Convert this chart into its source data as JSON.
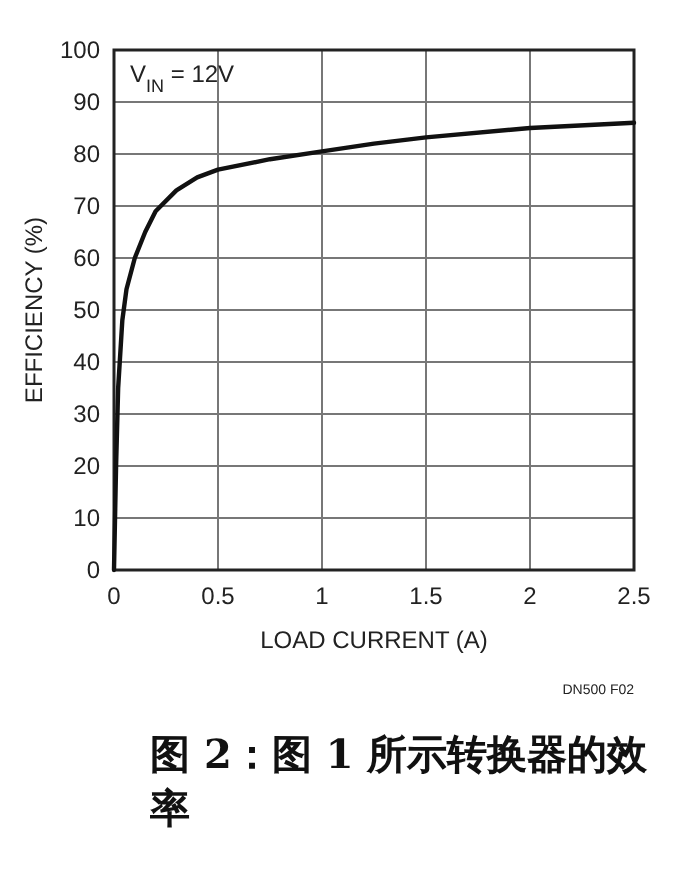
{
  "chart_data": {
    "type": "line",
    "title": "图 2：图 1 所示转换器的效率",
    "xlabel": "LOAD CURRENT (A)",
    "ylabel": "EFFICIENCY (%)",
    "annotations": [
      "V$_{IN}$ = 12V",
      "DN500 F02"
    ],
    "x": [
      0,
      0.01,
      0.02,
      0.04,
      0.06,
      0.1,
      0.15,
      0.2,
      0.3,
      0.4,
      0.5,
      0.75,
      1,
      1.25,
      1.5,
      2,
      2.5
    ],
    "series": [
      {
        "color": "#111111",
        "values": [
          0,
          20,
          35,
          48,
          54,
          60,
          65,
          69,
          73,
          75.5,
          77,
          79,
          80.5,
          82,
          83.2,
          85,
          86
        ]
      }
    ],
    "xlim": [
      0,
      2.5
    ],
    "ylim": [
      0,
      100
    ],
    "xticks": [
      0,
      0.5,
      1,
      1.5,
      2,
      2.5
    ],
    "yticks": [
      0,
      10,
      20,
      30,
      40,
      50,
      60,
      70,
      80,
      90,
      100
    ],
    "grid": true,
    "marker": "none",
    "line_style": "solid"
  }
}
